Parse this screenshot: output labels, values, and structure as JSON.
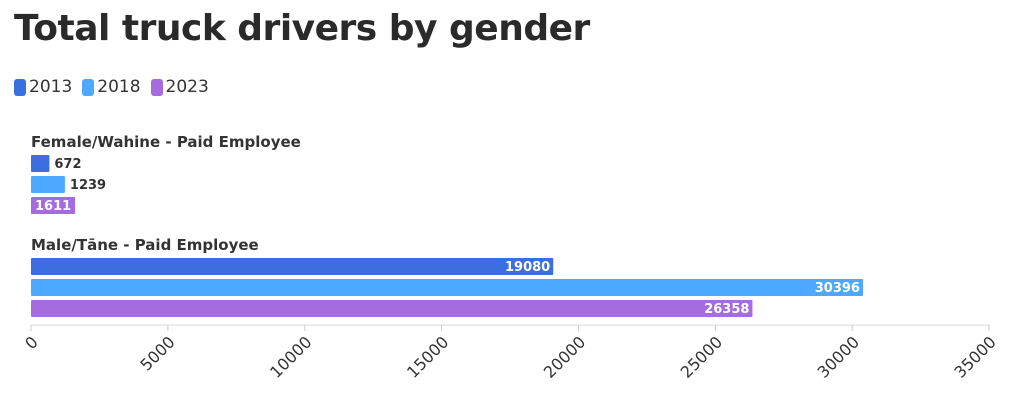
{
  "chart_data": {
    "type": "bar",
    "orientation": "horizontal",
    "title": "Total truck drivers by gender",
    "categories": [
      "Female/Wahine - Paid Employee",
      "Male/Tāne - Paid Employee"
    ],
    "series": [
      {
        "name": "2013",
        "color": "#3b6fe0",
        "values": [
          672,
          19080
        ]
      },
      {
        "name": "2018",
        "color": "#4da9ff",
        "values": [
          1239,
          30396
        ]
      },
      {
        "name": "2023",
        "color": "#a56ce0",
        "values": [
          1611,
          26358
        ]
      }
    ],
    "xlim": [
      0,
      35000
    ],
    "xticks": [
      "0",
      "5000",
      "10000",
      "15000",
      "20000",
      "25000",
      "30000",
      "35000"
    ],
    "legend_position": "top-left",
    "grid": false
  }
}
